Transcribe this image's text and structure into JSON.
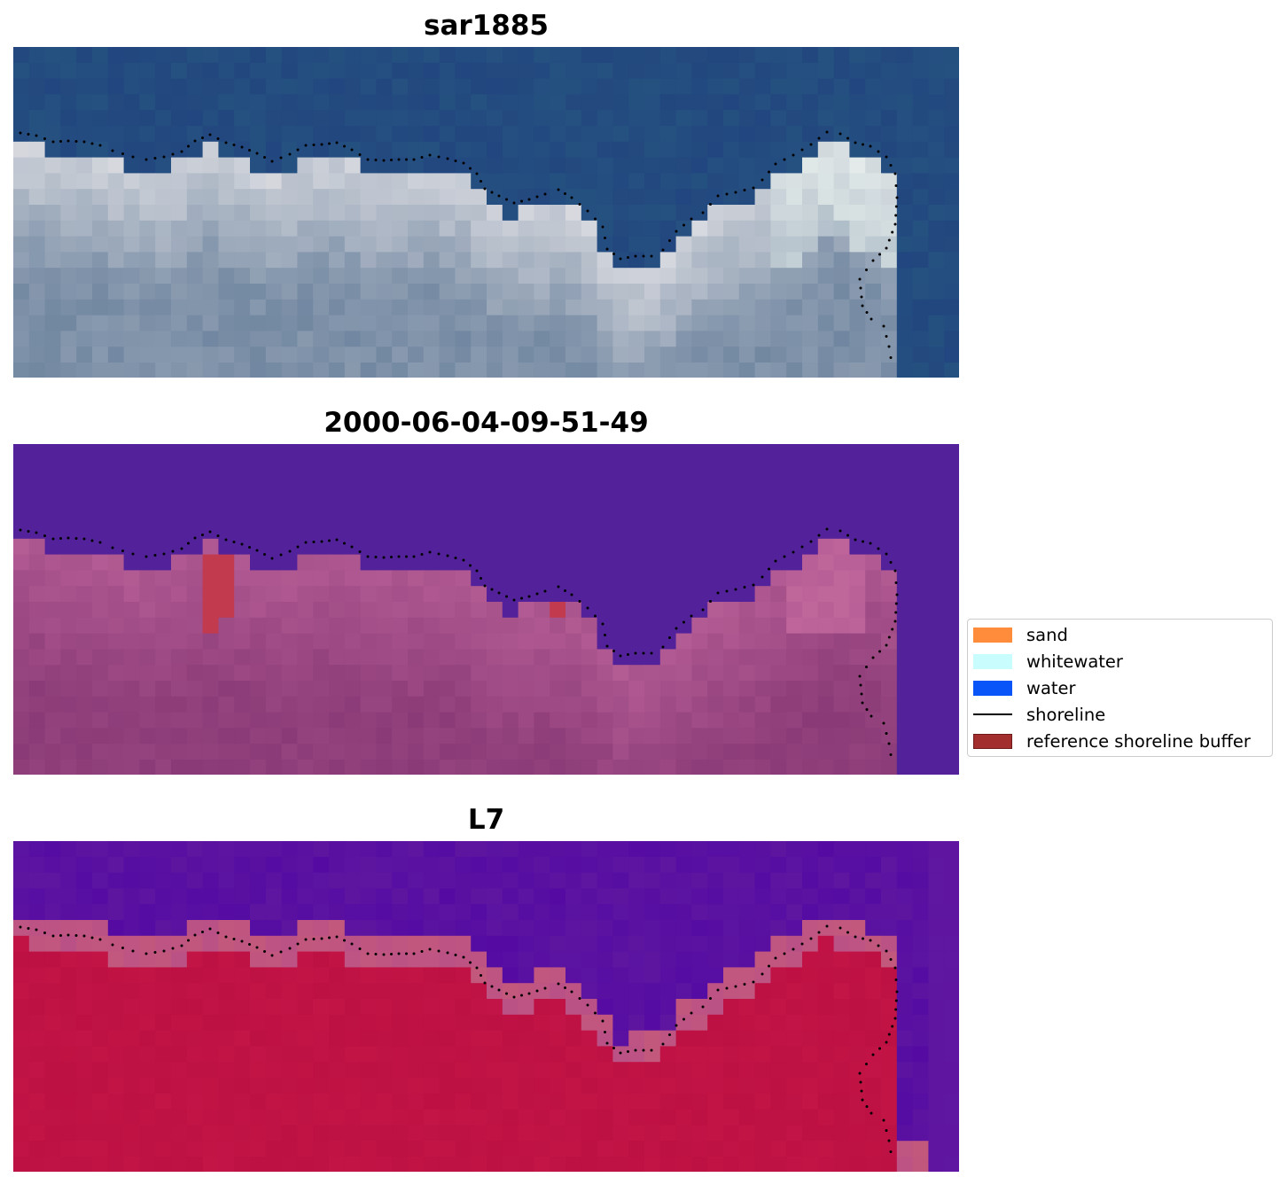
{
  "panels": [
    {
      "title": "sar1885",
      "style": "rgb",
      "image": "true-color satellite view: blue water above, white breaking surf and grey-blue sand below, shoreline dotted"
    },
    {
      "title": "2000-06-04-09-51-49",
      "style": "class",
      "image": "classified image: purple water above, pink/magenta land below, red reference buffer patches, shoreline dotted"
    },
    {
      "title": "L7",
      "style": "mndwi",
      "image": "index image: violet water above, crimson land below, shoreline dotted"
    }
  ],
  "legend": {
    "items": [
      {
        "label": "sand",
        "kind": "patch",
        "color": "#ff8c3b"
      },
      {
        "label": "whitewater",
        "kind": "patch",
        "color": "#c9fdfd"
      },
      {
        "label": "water",
        "kind": "patch",
        "color": "#0a55f8"
      },
      {
        "label": "shoreline",
        "kind": "line",
        "color": "#000000"
      },
      {
        "label": "reference shoreline buffer",
        "kind": "patch",
        "color": "#a22e2e",
        "edge": "#6e1a1a"
      }
    ]
  },
  "colors": {
    "rgb_water": "#22467f",
    "rgb_surf": "#dcdde2",
    "rgb_sand": "#7f92a9",
    "class_water": "#53229a",
    "class_land": "#8c3c78",
    "class_land_light": "#b85f97",
    "class_buffer": "#c23a4d",
    "mndwi_water": "#5e16a0",
    "mndwi_land": "#bd1043",
    "mndwi_edge": "#c3587d",
    "shoreline": "#000000"
  }
}
